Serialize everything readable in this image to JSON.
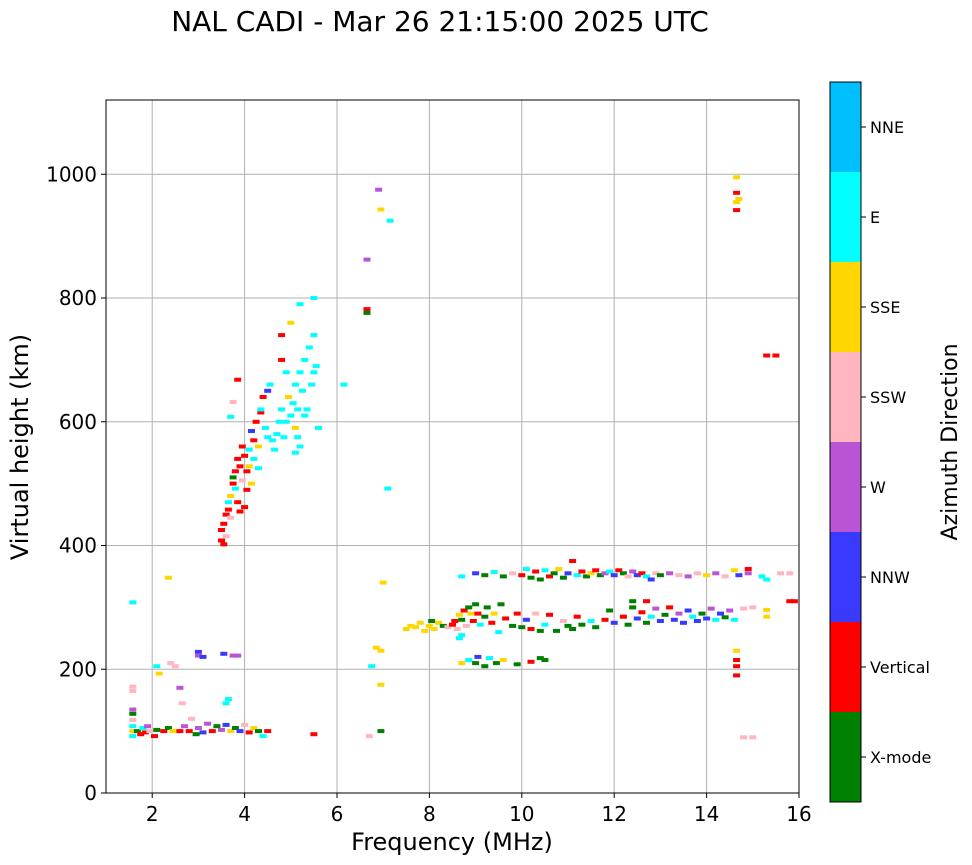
{
  "chart_data": {
    "type": "scatter",
    "title": "NAL CADI - Mar 26 21:15:00 2025 UTC",
    "xlabel": "Frequency (MHz)",
    "ylabel": "Virtual height (km)",
    "xlim": [
      1,
      16
    ],
    "ylim": [
      0,
      1120
    ],
    "xticks": [
      2,
      4,
      6,
      8,
      10,
      12,
      14,
      16
    ],
    "xtick_labels": [
      "2",
      "4",
      "6",
      "8",
      "10",
      "12",
      "14",
      "16"
    ],
    "yticks": [
      0,
      200,
      400,
      600,
      800,
      1000
    ],
    "ytick_labels": [
      "0",
      "200",
      "400",
      "600",
      "800",
      "1000"
    ],
    "grid": true,
    "colorbar": {
      "title": "Azimuth Direction",
      "categories": [
        "X-mode",
        "Vertical",
        "NNW",
        "W",
        "SSW",
        "SSE",
        "E",
        "NNE"
      ],
      "colors": [
        "#008000",
        "#ff0000",
        "#3a3aff",
        "#b955d4",
        "#ffb6c1",
        "#ffd700",
        "#00ffff",
        "#00bfff"
      ]
    },
    "point_columns": [
      "freq_mhz",
      "height_km",
      "direction"
    ],
    "points": [
      [
        1.58,
        92,
        "E"
      ],
      [
        1.58,
        100,
        "SSE"
      ],
      [
        1.58,
        108,
        "E"
      ],
      [
        1.58,
        118,
        "SSW"
      ],
      [
        1.58,
        128,
        "X-mode"
      ],
      [
        1.58,
        135,
        "W"
      ],
      [
        1.58,
        165,
        "SSW"
      ],
      [
        1.58,
        172,
        "SSW"
      ],
      [
        1.58,
        308,
        "E"
      ],
      [
        1.68,
        100,
        "X-mode"
      ],
      [
        1.75,
        95,
        "Vertical"
      ],
      [
        1.8,
        105,
        "E"
      ],
      [
        1.85,
        98,
        "Vertical"
      ],
      [
        1.9,
        108,
        "W"
      ],
      [
        1.95,
        100,
        "SSW"
      ],
      [
        2.05,
        92,
        "Vertical"
      ],
      [
        2.1,
        102,
        "X-mode"
      ],
      [
        2.1,
        205,
        "E"
      ],
      [
        2.15,
        193,
        "SSE"
      ],
      [
        2.25,
        100,
        "Vertical"
      ],
      [
        2.35,
        348,
        "SSE"
      ],
      [
        2.35,
        105,
        "X-mode"
      ],
      [
        2.4,
        210,
        "SSW"
      ],
      [
        2.45,
        100,
        "SSE"
      ],
      [
        2.5,
        205,
        "SSW"
      ],
      [
        2.6,
        100,
        "Vertical"
      ],
      [
        2.6,
        170,
        "W"
      ],
      [
        2.65,
        145,
        "SSW"
      ],
      [
        2.7,
        108,
        "W"
      ],
      [
        2.8,
        100,
        "Vertical"
      ],
      [
        2.85,
        120,
        "SSW"
      ],
      [
        2.95,
        95,
        "X-mode"
      ],
      [
        3.0,
        105,
        "W"
      ],
      [
        3.0,
        228,
        "NNW"
      ],
      [
        3.0,
        222,
        "W"
      ],
      [
        3.1,
        98,
        "NNW"
      ],
      [
        3.1,
        220,
        "NNW"
      ],
      [
        3.2,
        112,
        "W"
      ],
      [
        3.3,
        100,
        "Vertical"
      ],
      [
        3.4,
        108,
        "X-mode"
      ],
      [
        3.5,
        102,
        "W"
      ],
      [
        3.55,
        225,
        "NNW"
      ],
      [
        3.6,
        110,
        "NNW"
      ],
      [
        3.6,
        145,
        "E"
      ],
      [
        3.65,
        152,
        "E"
      ],
      [
        3.7,
        100,
        "SSE"
      ],
      [
        3.75,
        222,
        "W"
      ],
      [
        3.8,
        105,
        "X-mode"
      ],
      [
        3.85,
        222,
        "W"
      ],
      [
        3.9,
        100,
        "NNW"
      ],
      [
        4.0,
        110,
        "SSW"
      ],
      [
        4.1,
        98,
        "Vertical"
      ],
      [
        4.2,
        105,
        "SSE"
      ],
      [
        4.3,
        100,
        "X-mode"
      ],
      [
        4.4,
        92,
        "E"
      ],
      [
        4.5,
        100,
        "Vertical"
      ],
      [
        6.7,
        92,
        "SSW"
      ],
      [
        6.95,
        100,
        "X-mode"
      ],
      [
        5.5,
        95,
        "Vertical"
      ],
      [
        6.75,
        205,
        "E"
      ],
      [
        6.85,
        235,
        "SSE"
      ],
      [
        6.95,
        230,
        "SSE"
      ],
      [
        6.95,
        175,
        "SSE"
      ],
      [
        7.0,
        340,
        "SSE"
      ],
      [
        7.1,
        492,
        "E"
      ],
      [
        6.95,
        943,
        "SSE"
      ],
      [
        7.15,
        925,
        "E"
      ],
      [
        6.9,
        975,
        "W"
      ],
      [
        6.65,
        862,
        "W"
      ],
      [
        6.65,
        782,
        "Vertical"
      ],
      [
        6.65,
        776,
        "X-mode"
      ],
      [
        6.15,
        660,
        "E"
      ],
      [
        3.5,
        408,
        "Vertical"
      ],
      [
        3.55,
        402,
        "Vertical"
      ],
      [
        3.5,
        425,
        "Vertical"
      ],
      [
        3.55,
        435,
        "Vertical"
      ],
      [
        3.6,
        450,
        "Vertical"
      ],
      [
        3.6,
        415,
        "SSW"
      ],
      [
        3.65,
        458,
        "Vertical"
      ],
      [
        3.65,
        470,
        "E"
      ],
      [
        3.7,
        480,
        "SSE"
      ],
      [
        3.7,
        445,
        "SSW"
      ],
      [
        3.75,
        500,
        "Vertical"
      ],
      [
        3.75,
        510,
        "X-mode"
      ],
      [
        3.8,
        492,
        "E"
      ],
      [
        3.8,
        520,
        "Vertical"
      ],
      [
        3.85,
        540,
        "Vertical"
      ],
      [
        3.85,
        470,
        "Vertical"
      ],
      [
        3.9,
        455,
        "Vertical"
      ],
      [
        3.9,
        528,
        "Vertical"
      ],
      [
        3.95,
        505,
        "SSW"
      ],
      [
        3.95,
        560,
        "Vertical"
      ],
      [
        4.0,
        545,
        "Vertical"
      ],
      [
        4.0,
        462,
        "Vertical"
      ],
      [
        4.05,
        490,
        "Vertical"
      ],
      [
        4.05,
        520,
        "Vertical"
      ],
      [
        4.1,
        528,
        "SSE"
      ],
      [
        4.1,
        555,
        "E"
      ],
      [
        4.15,
        585,
        "NNW"
      ],
      [
        4.15,
        500,
        "SSE"
      ],
      [
        4.2,
        570,
        "Vertical"
      ],
      [
        4.2,
        540,
        "E"
      ],
      [
        4.25,
        600,
        "Vertical"
      ],
      [
        4.3,
        560,
        "SSE"
      ],
      [
        4.3,
        525,
        "E"
      ],
      [
        4.35,
        615,
        "Vertical"
      ],
      [
        4.4,
        640,
        "Vertical"
      ],
      [
        4.45,
        590,
        "E"
      ],
      [
        4.5,
        650,
        "NNW"
      ],
      [
        4.5,
        575,
        "E"
      ],
      [
        3.75,
        632,
        "SSW"
      ],
      [
        3.7,
        608,
        "E"
      ],
      [
        3.85,
        668,
        "Vertical"
      ],
      [
        4.6,
        570,
        "E"
      ],
      [
        4.65,
        555,
        "E"
      ],
      [
        4.7,
        580,
        "E"
      ],
      [
        4.75,
        600,
        "E"
      ],
      [
        4.8,
        620,
        "E"
      ],
      [
        4.8,
        700,
        "Vertical"
      ],
      [
        4.85,
        575,
        "E"
      ],
      [
        4.9,
        600,
        "E"
      ],
      [
        4.9,
        680,
        "E"
      ],
      [
        4.95,
        640,
        "SSE"
      ],
      [
        5.0,
        610,
        "E"
      ],
      [
        5.05,
        630,
        "E"
      ],
      [
        5.1,
        660,
        "E"
      ],
      [
        5.1,
        590,
        "SSE"
      ],
      [
        5.15,
        620,
        "E"
      ],
      [
        5.2,
        680,
        "E"
      ],
      [
        5.2,
        560,
        "E"
      ],
      [
        5.25,
        650,
        "E"
      ],
      [
        5.3,
        700,
        "E"
      ],
      [
        5.3,
        610,
        "E"
      ],
      [
        5.35,
        620,
        "E"
      ],
      [
        5.4,
        720,
        "E"
      ],
      [
        5.45,
        660,
        "E"
      ],
      [
        5.5,
        740,
        "E"
      ],
      [
        5.5,
        680,
        "E"
      ],
      [
        5.55,
        690,
        "E"
      ],
      [
        5.5,
        800,
        "E"
      ],
      [
        5.2,
        790,
        "E"
      ],
      [
        5.0,
        760,
        "SSE"
      ],
      [
        4.8,
        740,
        "Vertical"
      ],
      [
        5.1,
        550,
        "E"
      ],
      [
        5.15,
        575,
        "E"
      ],
      [
        5.6,
        590,
        "E"
      ],
      [
        4.55,
        660,
        "E"
      ],
      [
        4.35,
        620,
        "E"
      ],
      [
        7.5,
        265,
        "SSE"
      ],
      [
        7.6,
        270,
        "SSE"
      ],
      [
        7.7,
        268,
        "SSE"
      ],
      [
        7.8,
        275,
        "SSE"
      ],
      [
        7.9,
        262,
        "SSE"
      ],
      [
        8.0,
        270,
        "SSE"
      ],
      [
        8.05,
        278,
        "X-mode"
      ],
      [
        8.1,
        265,
        "SSE"
      ],
      [
        8.2,
        275,
        "SSE"
      ],
      [
        8.3,
        270,
        "X-mode"
      ],
      [
        8.4,
        268,
        "SSW"
      ],
      [
        8.5,
        272,
        "Vertical"
      ],
      [
        8.55,
        278,
        "Vertical"
      ],
      [
        8.6,
        265,
        "SSW"
      ],
      [
        8.65,
        288,
        "SSE"
      ],
      [
        8.7,
        280,
        "X-mode"
      ],
      [
        8.75,
        295,
        "Vertical"
      ],
      [
        8.8,
        270,
        "SSW"
      ],
      [
        8.85,
        300,
        "X-mode"
      ],
      [
        8.9,
        290,
        "SSE"
      ],
      [
        8.95,
        278,
        "Vertical"
      ],
      [
        9.0,
        305,
        "X-mode"
      ],
      [
        9.05,
        290,
        "Vertical"
      ],
      [
        9.1,
        272,
        "E"
      ],
      [
        9.2,
        285,
        "X-mode"
      ],
      [
        9.25,
        300,
        "X-mode"
      ],
      [
        9.35,
        275,
        "Vertical"
      ],
      [
        9.4,
        290,
        "SSE"
      ],
      [
        9.5,
        260,
        "E"
      ],
      [
        9.55,
        305,
        "X-mode"
      ],
      [
        9.65,
        282,
        "Vertical"
      ],
      [
        9.8,
        270,
        "X-mode"
      ],
      [
        9.9,
        290,
        "Vertical"
      ],
      [
        10.0,
        268,
        "X-mode"
      ],
      [
        10.1,
        280,
        "NNW"
      ],
      [
        10.2,
        265,
        "Vertical"
      ],
      [
        10.3,
        290,
        "SSW"
      ],
      [
        10.4,
        262,
        "X-mode"
      ],
      [
        10.5,
        272,
        "E"
      ],
      [
        10.6,
        288,
        "Vertical"
      ],
      [
        10.75,
        262,
        "X-mode"
      ],
      [
        10.9,
        278,
        "SSW"
      ],
      [
        11.0,
        270,
        "X-mode"
      ],
      [
        11.1,
        265,
        "X-mode"
      ],
      [
        11.2,
        285,
        "Vertical"
      ],
      [
        11.3,
        272,
        "X-mode"
      ],
      [
        11.5,
        278,
        "E"
      ],
      [
        11.6,
        268,
        "X-mode"
      ],
      [
        11.8,
        280,
        "Vertical"
      ],
      [
        11.9,
        295,
        "X-mode"
      ],
      [
        12.0,
        275,
        "NNW"
      ],
      [
        12.2,
        285,
        "Vertical"
      ],
      [
        12.3,
        272,
        "X-mode"
      ],
      [
        12.4,
        300,
        "X-mode"
      ],
      [
        12.5,
        282,
        "NNW"
      ],
      [
        12.6,
        292,
        "Vertical"
      ],
      [
        12.7,
        275,
        "X-mode"
      ],
      [
        12.8,
        285,
        "E"
      ],
      [
        12.9,
        298,
        "W"
      ],
      [
        13.0,
        278,
        "NNW"
      ],
      [
        13.1,
        288,
        "X-mode"
      ],
      [
        13.2,
        300,
        "Vertical"
      ],
      [
        13.3,
        280,
        "NNW"
      ],
      [
        13.4,
        290,
        "W"
      ],
      [
        13.5,
        275,
        "NNW"
      ],
      [
        13.6,
        295,
        "NNW"
      ],
      [
        13.7,
        285,
        "E"
      ],
      [
        13.8,
        278,
        "NNW"
      ],
      [
        13.9,
        290,
        "X-mode"
      ],
      [
        14.0,
        282,
        "NNW"
      ],
      [
        14.1,
        298,
        "W"
      ],
      [
        14.2,
        280,
        "E"
      ],
      [
        14.3,
        290,
        "NNW"
      ],
      [
        14.4,
        284,
        "X-mode"
      ],
      [
        14.5,
        295,
        "W"
      ],
      [
        14.6,
        280,
        "E"
      ],
      [
        14.8,
        298,
        "SSW"
      ],
      [
        15.0,
        300,
        "SSW"
      ],
      [
        15.3,
        296,
        "SSE"
      ],
      [
        15.3,
        285,
        "SSE"
      ],
      [
        12.4,
        310,
        "X-mode"
      ],
      [
        12.7,
        310,
        "Vertical"
      ],
      [
        8.7,
        350,
        "E"
      ],
      [
        9.0,
        355,
        "NNW"
      ],
      [
        9.2,
        352,
        "X-mode"
      ],
      [
        9.4,
        357,
        "E"
      ],
      [
        9.6,
        350,
        "X-mode"
      ],
      [
        9.8,
        355,
        "SSW"
      ],
      [
        10.0,
        352,
        "Vertical"
      ],
      [
        10.1,
        362,
        "E"
      ],
      [
        10.2,
        348,
        "X-mode"
      ],
      [
        10.3,
        358,
        "Vertical"
      ],
      [
        10.4,
        345,
        "X-mode"
      ],
      [
        10.5,
        360,
        "E"
      ],
      [
        10.6,
        350,
        "Vertical"
      ],
      [
        10.7,
        355,
        "X-mode"
      ],
      [
        10.8,
        362,
        "SSE"
      ],
      [
        10.9,
        348,
        "X-mode"
      ],
      [
        11.0,
        355,
        "NNW"
      ],
      [
        11.1,
        375,
        "Vertical"
      ],
      [
        11.2,
        352,
        "E"
      ],
      [
        11.3,
        358,
        "Vertical"
      ],
      [
        11.4,
        350,
        "X-mode"
      ],
      [
        11.5,
        355,
        "SSE"
      ],
      [
        11.6,
        360,
        "Vertical"
      ],
      [
        11.7,
        352,
        "X-mode"
      ],
      [
        11.8,
        355,
        "W"
      ],
      [
        11.9,
        358,
        "E"
      ],
      [
        12.0,
        352,
        "NNW"
      ],
      [
        12.1,
        360,
        "Vertical"
      ],
      [
        12.2,
        355,
        "X-mode"
      ],
      [
        12.3,
        350,
        "SSW"
      ],
      [
        12.4,
        358,
        "W"
      ],
      [
        12.5,
        352,
        "NNW"
      ],
      [
        12.6,
        355,
        "Vertical"
      ],
      [
        12.7,
        350,
        "E"
      ],
      [
        12.8,
        345,
        "NNW"
      ],
      [
        12.9,
        355,
        "SSW"
      ],
      [
        13.0,
        352,
        "X-mode"
      ],
      [
        13.2,
        355,
        "W"
      ],
      [
        13.4,
        352,
        "SSW"
      ],
      [
        13.6,
        350,
        "W"
      ],
      [
        13.8,
        355,
        "SSW"
      ],
      [
        14.0,
        352,
        "SSE"
      ],
      [
        14.2,
        355,
        "W"
      ],
      [
        14.4,
        350,
        "SSW"
      ],
      [
        14.6,
        360,
        "SSE"
      ],
      [
        14.7,
        352,
        "NNW"
      ],
      [
        14.9,
        362,
        "Vertical"
      ],
      [
        14.9,
        355,
        "W"
      ],
      [
        15.2,
        350,
        "E"
      ],
      [
        15.3,
        345,
        "E"
      ],
      [
        15.6,
        355,
        "SSW"
      ],
      [
        15.8,
        355,
        "SSW"
      ],
      [
        8.7,
        210,
        "SSE"
      ],
      [
        8.85,
        215,
        "E"
      ],
      [
        9.0,
        210,
        "X-mode"
      ],
      [
        9.05,
        220,
        "NNW"
      ],
      [
        9.2,
        205,
        "X-mode"
      ],
      [
        9.3,
        218,
        "E"
      ],
      [
        9.45,
        210,
        "X-mode"
      ],
      [
        9.6,
        215,
        "SSE"
      ],
      [
        9.9,
        208,
        "X-mode"
      ],
      [
        10.2,
        212,
        "Vertical"
      ],
      [
        10.4,
        218,
        "X-mode"
      ],
      [
        10.5,
        215,
        "X-mode"
      ],
      [
        8.65,
        250,
        "E"
      ],
      [
        8.7,
        255,
        "E"
      ],
      [
        14.65,
        995,
        "SSE"
      ],
      [
        14.65,
        970,
        "Vertical"
      ],
      [
        14.7,
        960,
        "SSE"
      ],
      [
        14.65,
        955,
        "SSE"
      ],
      [
        14.65,
        942,
        "Vertical"
      ],
      [
        15.3,
        707,
        "Vertical"
      ],
      [
        15.5,
        707,
        "Vertical"
      ],
      [
        15.8,
        310,
        "Vertical"
      ],
      [
        15.9,
        310,
        "Vertical"
      ],
      [
        14.65,
        230,
        "SSE"
      ],
      [
        14.65,
        215,
        "Vertical"
      ],
      [
        14.65,
        205,
        "Vertical"
      ],
      [
        14.65,
        190,
        "Vertical"
      ],
      [
        15.0,
        90,
        "SSW"
      ],
      [
        14.8,
        90,
        "SSW"
      ]
    ]
  }
}
